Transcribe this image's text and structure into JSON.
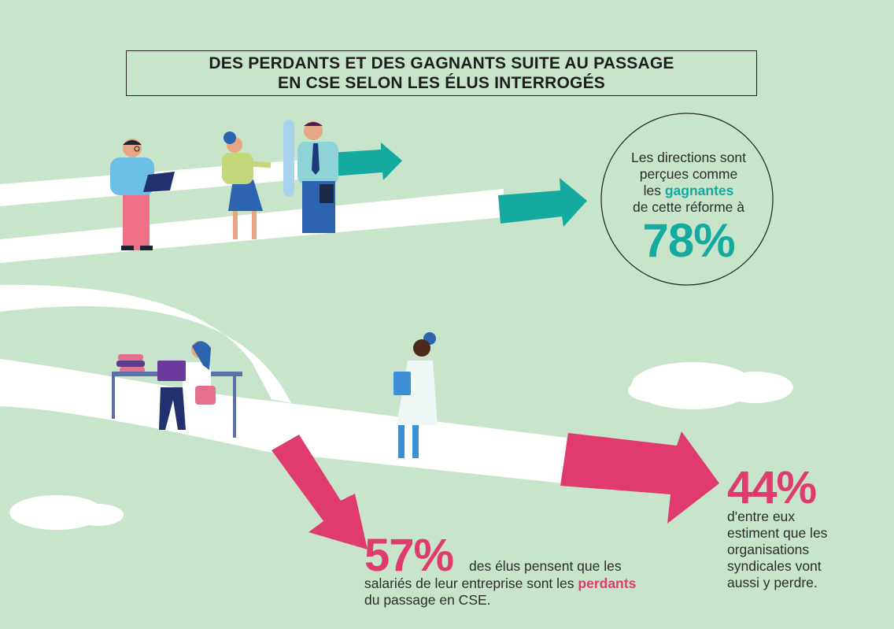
{
  "title": {
    "line1": "DES PERDANTS ET DES GAGNANTS SUITE AU PASSAGE",
    "line2": "EN CSE SELON LES ÉLUS INTERROGÉS"
  },
  "directions": {
    "line1": "Les directions sont",
    "line2": "perçues comme",
    "line3_prefix": "les ",
    "line3_highlight": "gagnantes",
    "line4": "de cette réforme à",
    "value": "78%"
  },
  "salaries": {
    "value": "57%",
    "line1": "des élus pensent que les",
    "line2_prefix": "salariés de leur entreprise sont les ",
    "line2_highlight": "perdants",
    "line3": "du passage en CSE."
  },
  "syndicats": {
    "value": "44%",
    "lines": [
      "d'entre eux",
      "estiment que les",
      "organisations",
      "syndicales vont",
      "aussi y perdre."
    ]
  },
  "colors": {
    "background": "#c8e5cb",
    "teal": "#14aaa0",
    "pink": "#e03b6f",
    "road": "#ffffff"
  }
}
